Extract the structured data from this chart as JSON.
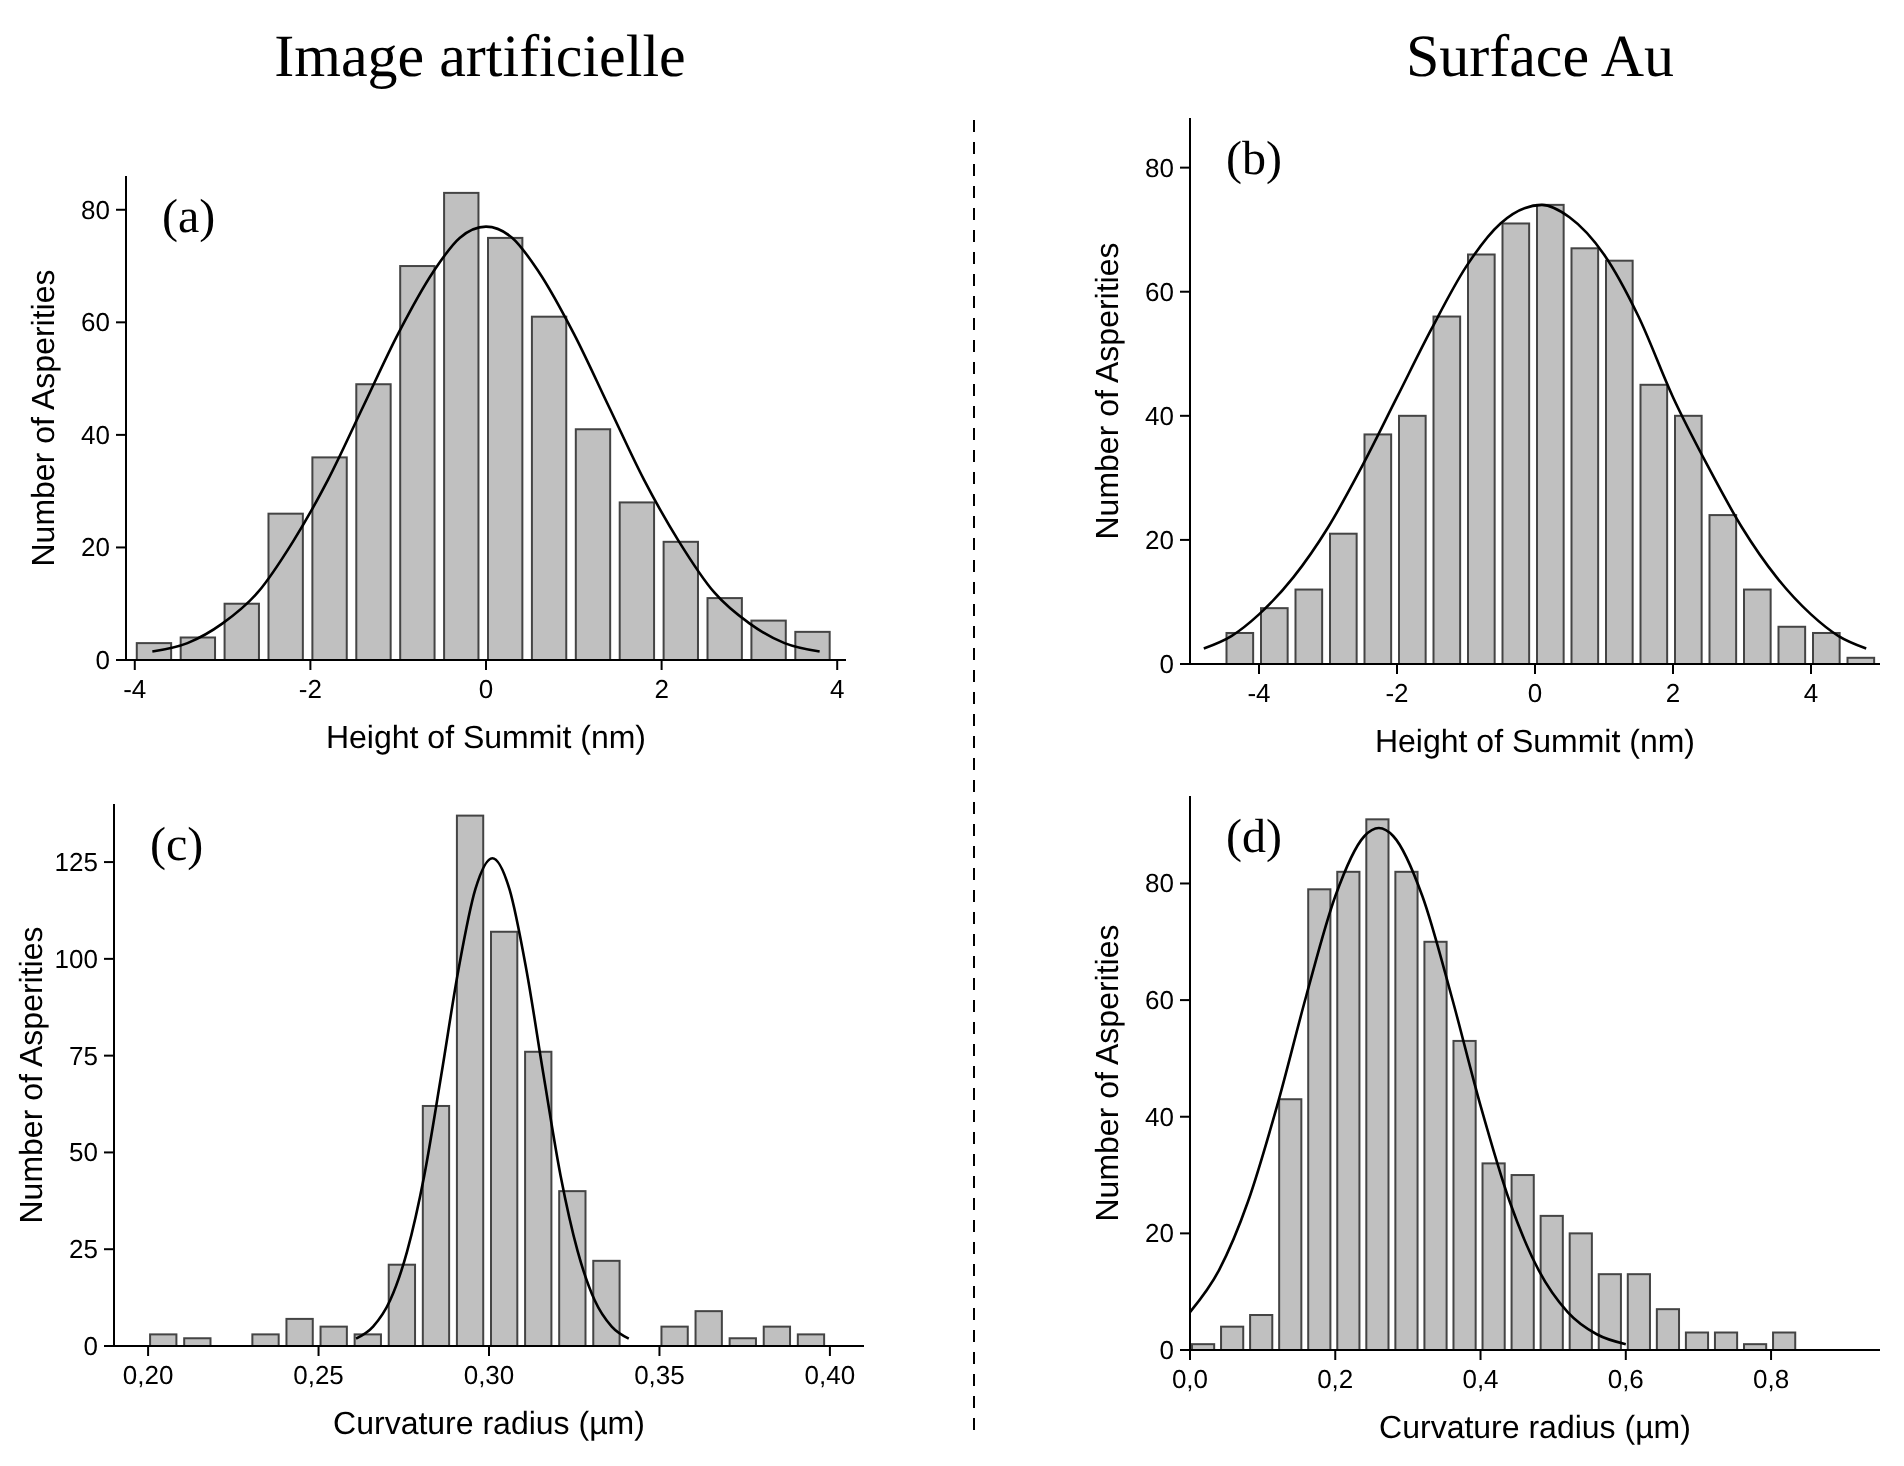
{
  "chart_data": [
    {
      "type": "histogram",
      "title": "Image artificielle",
      "xlabel": "Height of Summit (nm)",
      "ylabel": "Number of Asperities",
      "annotations": [
        "(a)"
      ],
      "color": "#c0c0c0",
      "bins": [
        -4,
        -3.5,
        -3,
        -2.5,
        -2,
        -1.5,
        -1,
        -0.5,
        0,
        0.5,
        1,
        1.5,
        2,
        2.5,
        3,
        3.5,
        4
      ],
      "values": [
        3,
        4,
        10,
        26,
        36,
        49,
        70,
        83,
        75,
        61,
        41,
        28,
        21,
        11,
        7,
        5
      ],
      "series": [
        {
          "type": "line",
          "color": "#000000",
          "x": [
            -3.8,
            -3.4,
            -3,
            -2.6,
            -2.2,
            -1.8,
            -1.4,
            -1,
            -0.6,
            -0.3,
            0,
            0.3,
            0.6,
            1,
            1.4,
            1.8,
            2.2,
            2.6,
            3,
            3.4,
            3.8
          ],
          "values": [
            1.5,
            3,
            6.5,
            12,
            21,
            32,
            45,
            58,
            69,
            75,
            77,
            75,
            69,
            58,
            45,
            32,
            21,
            12,
            6.5,
            3,
            1.5
          ]
        }
      ],
      "xlim": [
        -4.1,
        4.1
      ],
      "xticks": [
        -4,
        -2,
        0,
        2,
        4
      ],
      "ylim": [
        0,
        86
      ],
      "yticks": [
        0,
        20,
        40,
        60,
        80
      ]
    },
    {
      "type": "histogram",
      "title": "Surface Au",
      "xlabel": "Height of Summit (nm)",
      "ylabel": "Number of Asperities",
      "annotations": [
        "(b)"
      ],
      "color": "#c0c0c0",
      "bins": [
        -4.5,
        -4,
        -3.5,
        -3,
        -2.5,
        -2,
        -1.5,
        -1,
        -0.5,
        0,
        0.5,
        1,
        1.5,
        2,
        2.5,
        3,
        3.5,
        4,
        4.5,
        5
      ],
      "values": [
        5,
        9,
        12,
        21,
        37,
        40,
        56,
        66,
        71,
        74,
        67,
        65,
        45,
        40,
        24,
        12,
        6,
        5,
        1
      ],
      "series": [
        {
          "type": "line",
          "color": "#000000",
          "x": [
            -4.8,
            -4.4,
            -4,
            -3.5,
            -3,
            -2.5,
            -2,
            -1.5,
            -1,
            -0.5,
            0.1,
            0.5,
            1,
            1.5,
            2,
            2.5,
            3,
            3.5,
            4,
            4.4,
            4.8
          ],
          "values": [
            2.5,
            4.5,
            8,
            14,
            22,
            32,
            43,
            54,
            64,
            71,
            74,
            72,
            66,
            56,
            43,
            32,
            22,
            14,
            8,
            4.5,
            2.5
          ]
        }
      ],
      "xlim": [
        -5,
        5
      ],
      "xticks": [
        -4,
        -2,
        0,
        2,
        4
      ],
      "ylim": [
        0,
        88
      ],
      "yticks": [
        0,
        20,
        40,
        60,
        80
      ]
    },
    {
      "type": "histogram",
      "xlabel": "Curvature radius (µm)",
      "ylabel": "Number of Asperities",
      "annotations": [
        "(c)"
      ],
      "color": "#c0c0c0",
      "bins": [
        0.2,
        0.21,
        0.22,
        0.23,
        0.24,
        0.25,
        0.26,
        0.27,
        0.28,
        0.29,
        0.3,
        0.31,
        0.32,
        0.33,
        0.34,
        0.35,
        0.36,
        0.37,
        0.38,
        0.39,
        0.4
      ],
      "values": [
        3,
        2,
        0,
        3,
        7,
        5,
        3,
        21,
        62,
        137,
        107,
        76,
        40,
        22,
        0,
        5,
        9,
        2,
        5,
        3
      ],
      "series": [
        {
          "type": "line",
          "color": "#000000",
          "x": [
            0.261,
            0.266,
            0.271,
            0.276,
            0.281,
            0.286,
            0.291,
            0.296,
            0.301,
            0.306,
            0.311,
            0.316,
            0.321,
            0.326,
            0.331,
            0.336,
            0.341
          ],
          "values": [
            1.9,
            5,
            11.8,
            24.5,
            44,
            70,
            97,
            118,
            126,
            118,
            97,
            70,
            44,
            24.5,
            11.8,
            5,
            1.9
          ]
        }
      ],
      "xlim": [
        0.19,
        0.41
      ],
      "xticks": [
        {
          "value": 0.2,
          "label": "0,20"
        },
        {
          "value": 0.25,
          "label": "0,25"
        },
        {
          "value": 0.3,
          "label": "0,30"
        },
        {
          "value": 0.35,
          "label": "0,35"
        },
        {
          "value": 0.4,
          "label": "0,40"
        }
      ],
      "ylim": [
        0,
        140
      ],
      "yticks": [
        0,
        25,
        50,
        75,
        100,
        125
      ]
    },
    {
      "type": "histogram",
      "xlabel": "Curvature radius (µm)",
      "ylabel": "Number of Asperities",
      "annotations": [
        "(d)"
      ],
      "color": "#c0c0c0",
      "bins": [
        0,
        0.04,
        0.08,
        0.12,
        0.16,
        0.2,
        0.24,
        0.28,
        0.32,
        0.36,
        0.4,
        0.44,
        0.48,
        0.52,
        0.56,
        0.6,
        0.64,
        0.68,
        0.72,
        0.76,
        0.8,
        0.84
      ],
      "values": [
        1,
        4,
        6,
        43,
        79,
        82,
        91,
        82,
        70,
        53,
        32,
        30,
        23,
        20,
        13,
        13,
        7,
        3,
        3,
        1,
        3
      ],
      "series": [
        {
          "type": "line",
          "color": "#000000",
          "x": [
            0,
            0.04,
            0.08,
            0.12,
            0.16,
            0.2,
            0.24,
            0.26,
            0.28,
            0.32,
            0.36,
            0.4,
            0.44,
            0.48,
            0.52,
            0.56,
            0.6
          ],
          "values": [
            6.5,
            13.7,
            25.5,
            41.9,
            60.7,
            77.8,
            88.1,
            89.5,
            88.1,
            77.8,
            60.7,
            41.9,
            25.5,
            13.7,
            6.5,
            2.7,
            1
          ]
        }
      ],
      "xlim": [
        0,
        0.95
      ],
      "xticks": [
        {
          "value": 0,
          "label": "0,0"
        },
        {
          "value": 0.2,
          "label": "0,2"
        },
        {
          "value": 0.4,
          "label": "0,4"
        },
        {
          "value": 0.6,
          "label": "0,6"
        },
        {
          "value": 0.8,
          "label": "0,8"
        }
      ],
      "ylim": [
        0,
        95
      ],
      "yticks": [
        0,
        20,
        40,
        60,
        80
      ]
    }
  ]
}
